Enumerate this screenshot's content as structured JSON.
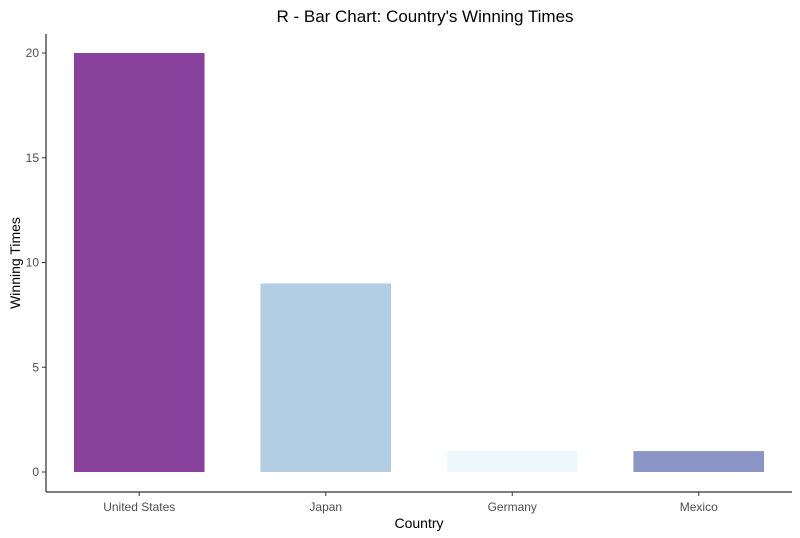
{
  "chart_data": {
    "type": "bar",
    "title": "R - Bar Chart: Country's Winning Times",
    "xlabel": "Country",
    "ylabel": "Winning Times",
    "categories": [
      "United States",
      "Japan",
      "Germany",
      "Mexico"
    ],
    "values": [
      20,
      9,
      1,
      1
    ],
    "colors": [
      "#88419d",
      "#b3cde3",
      "#edf8fb",
      "#8c96c6"
    ],
    "ylim": [
      0,
      21
    ],
    "yticks": [
      0,
      5,
      10,
      15,
      20
    ],
    "grid": false,
    "legend": "none"
  }
}
